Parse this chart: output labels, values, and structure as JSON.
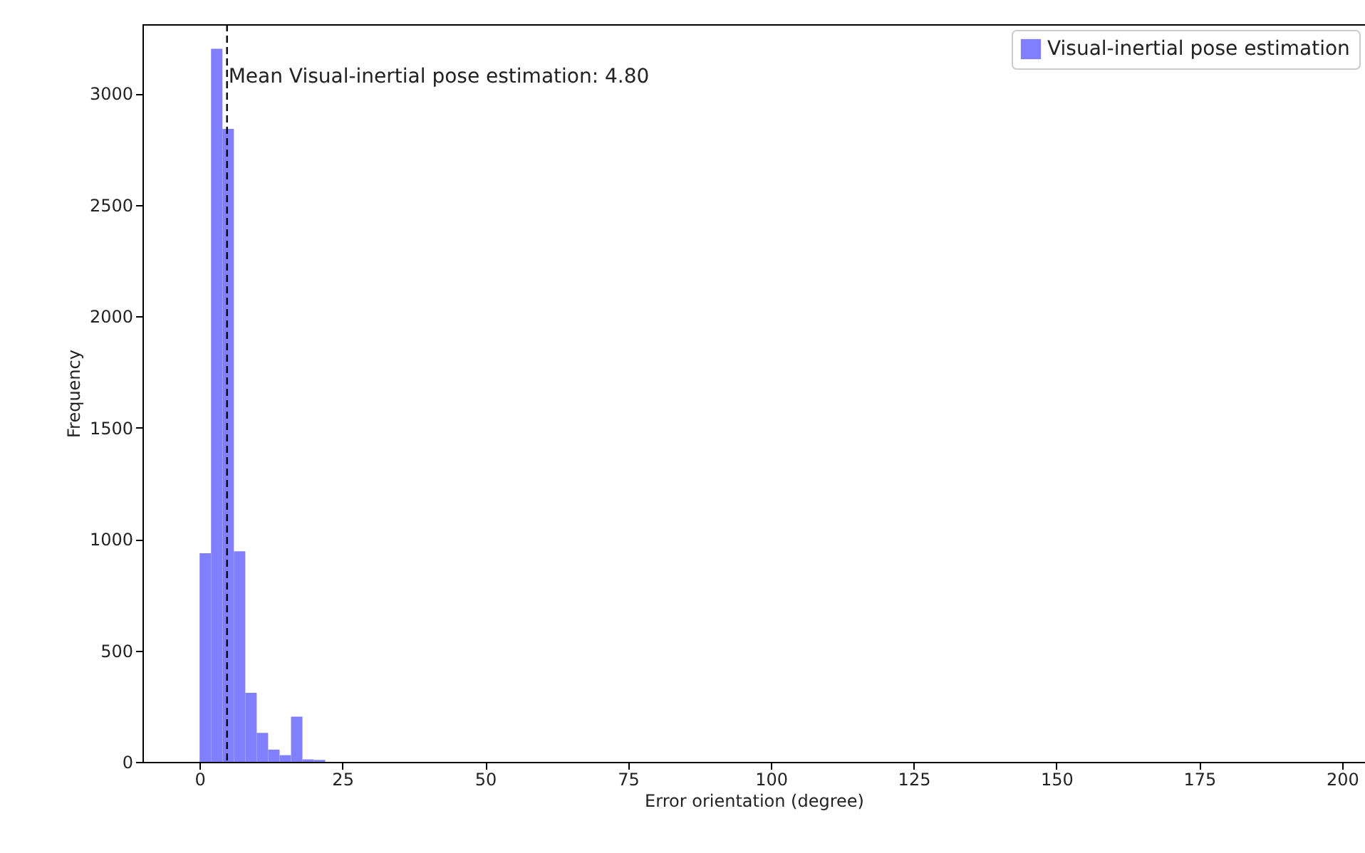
{
  "chart_data": {
    "type": "histogram",
    "xlabel": "Error orientation (degree)",
    "ylabel": "Frequency",
    "bins": [
      0,
      2,
      4,
      6,
      8,
      10,
      12,
      14,
      16,
      18,
      20,
      22
    ],
    "series": [
      {
        "name": "Visual-inertial pose estimation",
        "color": "#8080ff",
        "values": [
          936,
          3200,
          2840,
          945,
          310,
          130,
          55,
          30,
          203,
          11,
          9
        ]
      }
    ],
    "xlim": [
      -10,
      204
    ],
    "xticks": [
      0,
      25,
      50,
      75,
      100,
      125,
      150,
      175,
      200
    ],
    "ylim": [
      0,
      3310
    ],
    "yticks": [
      0,
      500,
      1000,
      1500,
      2000,
      2500,
      3000
    ],
    "ref_lines": [
      {
        "axis": "x",
        "value": 4.8,
        "label": "Mean Visual-inertial pose estimation: 4.80",
        "color": "#000000",
        "line_style": "dashed"
      }
    ],
    "legend": "top right",
    "grid": false
  }
}
